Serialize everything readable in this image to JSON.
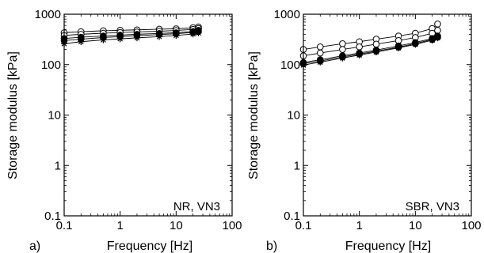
{
  "chart_data": [
    {
      "type": "line",
      "panel_label": "a)",
      "annotation": "NR, VN3",
      "xlabel": "Frequency [Hz]",
      "ylabel": "Storage modulus [kPa]",
      "xscale": "log",
      "yscale": "log",
      "xlim": [
        0.1,
        100
      ],
      "ylim": [
        0.1,
        1000
      ],
      "xticks": [
        "0.1",
        "1",
        "10",
        "100"
      ],
      "yticks": [
        "0.1",
        "1",
        "10",
        "100",
        "1000"
      ],
      "grid": false,
      "x": [
        0.1,
        0.2,
        0.5,
        1,
        2,
        5,
        10,
        20,
        25
      ],
      "series": [
        {
          "marker": "open-circle",
          "values": [
            430,
            450,
            470,
            480,
            490,
            505,
            515,
            540,
            560
          ]
        },
        {
          "marker": "open-circle",
          "values": [
            380,
            400,
            420,
            435,
            445,
            460,
            475,
            500,
            520
          ]
        },
        {
          "marker": "filled-circle",
          "values": [
            330,
            350,
            370,
            385,
            400,
            415,
            430,
            455,
            480
          ]
        },
        {
          "marker": "filled-circle",
          "values": [
            300,
            320,
            345,
            360,
            375,
            395,
            410,
            435,
            455
          ]
        },
        {
          "marker": "star",
          "values": [
            260,
            285,
            310,
            325,
            340,
            360,
            380,
            405,
            425
          ]
        }
      ]
    },
    {
      "type": "line",
      "panel_label": "b)",
      "annotation": "SBR, VN3",
      "xlabel": "Frequency [Hz]",
      "ylabel": "Storage modulus [kPa]",
      "xscale": "log",
      "yscale": "log",
      "xlim": [
        0.1,
        100
      ],
      "ylim": [
        0.1,
        1000
      ],
      "xticks": [
        "0.1",
        "1",
        "10",
        "100"
      ],
      "yticks": [
        "0.1",
        "1",
        "10",
        "100",
        "1000"
      ],
      "grid": false,
      "x": [
        0.1,
        0.2,
        0.5,
        1,
        2,
        5,
        10,
        20,
        25
      ],
      "series": [
        {
          "marker": "open-circle",
          "values": [
            200,
            225,
            260,
            285,
            320,
            370,
            420,
            520,
            640
          ]
        },
        {
          "marker": "open-circle",
          "values": [
            150,
            170,
            200,
            225,
            255,
            300,
            345,
            420,
            480
          ]
        },
        {
          "marker": "filled-circle",
          "values": [
            110,
            125,
            150,
            170,
            195,
            235,
            275,
            330,
            370
          ]
        },
        {
          "marker": "filled-circle",
          "values": [
            105,
            118,
            142,
            162,
            185,
            222,
            262,
            315,
            350
          ]
        },
        {
          "marker": "star",
          "values": [
            98,
            112,
            135,
            155,
            178,
            215,
            252,
            305,
            340
          ]
        }
      ]
    }
  ]
}
